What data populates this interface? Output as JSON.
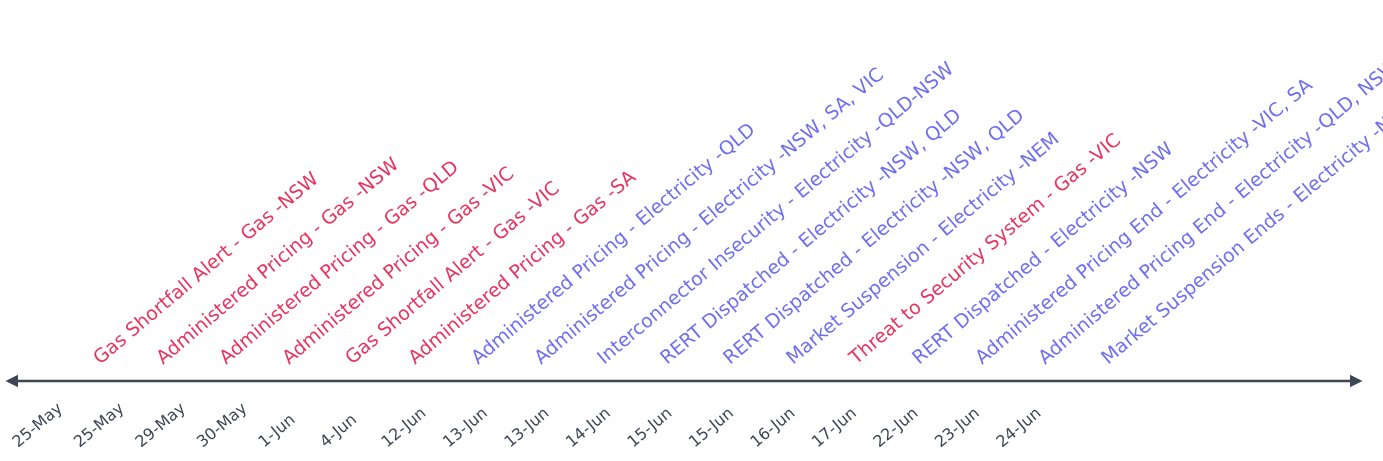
{
  "colors": {
    "gas": "#e8335f",
    "electricity": "#6e6ef0",
    "axis": "#3d4654",
    "date_text": "#3d4654"
  },
  "events": [
    {
      "date": "25-May",
      "label": "Gas Shortfall Alert - Gas -NSW",
      "category": "gas"
    },
    {
      "date": "25-May",
      "label": "Administered Pricing - Gas -NSW",
      "category": "gas"
    },
    {
      "date": "29-May",
      "label": "Administered Pricing - Gas -QLD",
      "category": "gas"
    },
    {
      "date": "30-May",
      "label": "Administered Pricing - Gas -VIC",
      "category": "gas"
    },
    {
      "date": "1-Jun",
      "label": "Gas Shortfall Alert - Gas -VIC",
      "category": "gas"
    },
    {
      "date": "4-Jun",
      "label": "Administered Pricing - Gas -SA",
      "category": "gas"
    },
    {
      "date": "12-Jun",
      "label": "Administered Pricing - Electricity -QLD",
      "category": "electricity"
    },
    {
      "date": "13-Jun",
      "label": "Administered Pricing - Electricity -NSW, SA, VIC",
      "category": "electricity"
    },
    {
      "date": "13-Jun",
      "label": "Interconnector Insecurity - Electricity -QLD-NSW",
      "category": "electricity"
    },
    {
      "date": "14-Jun",
      "label": "RERT Dispatched - Electricity -NSW, QLD",
      "category": "electricity"
    },
    {
      "date": "15-Jun",
      "label": "RERT Dispatched - Electricity -NSW, QLD",
      "category": "electricity"
    },
    {
      "date": "15-Jun",
      "label": "Market Suspension - Electricity -NEM",
      "category": "electricity"
    },
    {
      "date": "16-Jun",
      "label": "Threat to Security System - Gas -VIC",
      "category": "gas"
    },
    {
      "date": "17-Jun",
      "label": "RERT Dispatched - Electricity -NSW",
      "category": "electricity"
    },
    {
      "date": "22-Jun",
      "label": "Administered Pricing End - Electricity -VIC, SA",
      "category": "electricity"
    },
    {
      "date": "23-Jun",
      "label": "Administered Pricing End - Electricity -QLD, NSW",
      "category": "electricity"
    },
    {
      "date": "24-Jun",
      "label": "Market Suspension Ends - Electricity -NEM",
      "category": "electricity"
    }
  ]
}
